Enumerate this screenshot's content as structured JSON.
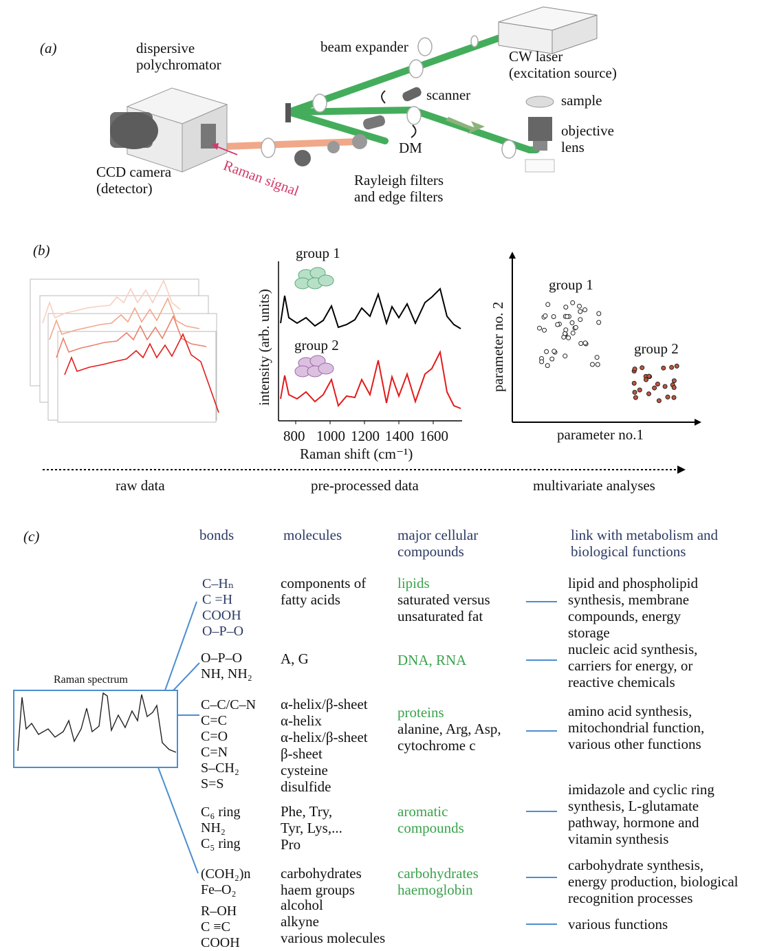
{
  "panel_a": {
    "label": "(a)",
    "polychromator": "dispersive\npolychromator",
    "beam_expander": "beam expander",
    "laser": "CW laser\n(excitation source)",
    "scanner": "scanner",
    "sample": "sample",
    "objective": "objective\nlens",
    "dm": "DM",
    "ccd": "CCD camera\n(detector)",
    "raman_signal": "Raman signal",
    "filters": "Rayleigh filters\nand edge filters"
  },
  "panel_b": {
    "label": "(b)",
    "group1": "group 1",
    "group2": "group 2",
    "ylabel": "intensity (arb. units)",
    "xlabel": "Raman shift (cm⁻¹)",
    "xticks": [
      "800",
      "1000",
      "1200",
      "1400",
      "1600"
    ],
    "scatter_group1": "group 1",
    "scatter_group2": "group 2",
    "param2": "parameter no. 2",
    "param1": "parameter no.1",
    "stage_raw": "raw data",
    "stage_pre": "pre-processed data",
    "stage_multi": "multivariate analyses"
  },
  "panel_c": {
    "label": "(c)",
    "headers": {
      "bonds": "bonds",
      "molecules": "molecules",
      "compounds": "major cellular\ncompounds",
      "link": "link with metabolism and\nbiological functions"
    },
    "spectrum_title": "Raman spectrum",
    "rows": [
      {
        "bonds": "C–Hₙ\nC =H\nCOOH\nO–P–O",
        "molecules": "components of\nfatty acids",
        "compound_title": "lipids",
        "compound_sub": "saturated versus\nunsaturated fat",
        "link": "lipid and phospholipid\nsynthesis, membrane\ncompounds, energy\nstorage"
      },
      {
        "bonds": "O–P–O\nNH, NH₂",
        "molecules": "A, G",
        "compound_title": "DNA, RNA",
        "compound_sub": "",
        "link": "nucleic acid synthesis,\ncarriers for energy, or\nreactive chemicals"
      },
      {
        "bonds": "C–C/C–N\nC=C\nC=O\nC=N\nS–CH₂\nS=S",
        "molecules": "α-helix/β-sheet\nα-helix\nα-helix/β-sheet\nβ-sheet\ncysteine\ndisulfide",
        "compound_title": "proteins",
        "compound_sub": "alanine, Arg, Asp,\ncytochrome c",
        "link": "amino acid synthesis,\nmitochondrial function,\nvarious other functions"
      },
      {
        "bonds": "C₆ ring\nNH₂\nC₅ ring",
        "molecules": "Phe, Try,\nTyr, Lys,...\nPro",
        "compound_title": "aromatic\ncompounds",
        "compound_sub": "",
        "link": "imidazole and cyclic ring\nsynthesis, L-glutamate\npathway, hormone and\nvitamin synthesis"
      },
      {
        "bonds": "(COH₂)n\nFe–O₂",
        "molecules": "carbohydrates\nhaem groups",
        "compound_title": "carbohydrates\nhaemoglobin",
        "compound_sub": "",
        "link": "carbohydrate synthesis,\nenergy production, biological\nrecognition processes"
      },
      {
        "bonds": "R–OH\nC ≡C\nCOOH",
        "molecules": "alcohol\nalkyne\nvarious molecules",
        "compound_title": "",
        "compound_sub": "",
        "link": "various functions"
      }
    ]
  }
}
